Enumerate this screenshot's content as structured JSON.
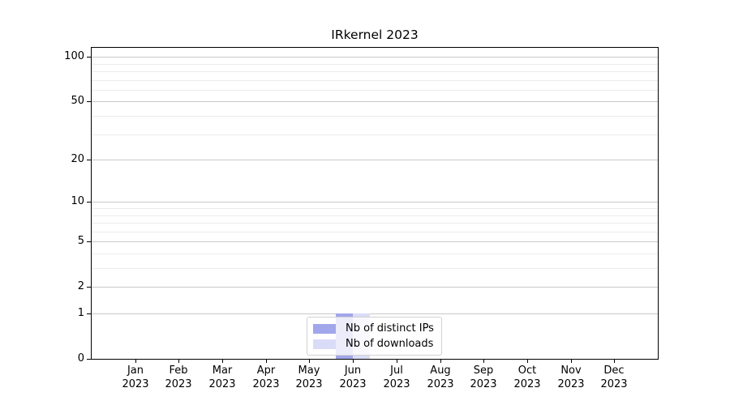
{
  "title": "IRkernel 2023",
  "colors": {
    "bar_distinct_ips": "#a2a6ea",
    "bar_downloads": "#dadcf7",
    "grid_major": "#c9c9c9",
    "grid_minor": "#ebebeb",
    "axis_spine": "#000000",
    "legend_border": "#d2d2d2"
  },
  "chart_data": {
    "type": "bar",
    "title": "IRkernel 2023",
    "categories": [
      "Jan 2023",
      "Feb 2023",
      "Mar 2023",
      "Apr 2023",
      "May 2023",
      "Jun 2023",
      "Jul 2023",
      "Aug 2023",
      "Sep 2023",
      "Oct 2023",
      "Nov 2023",
      "Dec 2023"
    ],
    "series": [
      {
        "name": "Nb of distinct IPs",
        "color": "#a2a6ea",
        "values": [
          0,
          0,
          0,
          0,
          0,
          1,
          0,
          0,
          0,
          0,
          0,
          0
        ]
      },
      {
        "name": "Nb of downloads",
        "color": "#dadcf7",
        "values": [
          0,
          0,
          0,
          0,
          0,
          1,
          0,
          0,
          0,
          0,
          0,
          0
        ]
      }
    ],
    "xlabel": "",
    "ylabel": "",
    "yscale": "log1p",
    "ylim": [
      0,
      115
    ],
    "y_major_ticks": [
      0,
      1,
      2,
      5,
      10,
      20,
      50,
      100
    ],
    "y_minor_ticks": [
      3,
      4,
      6,
      7,
      8,
      9,
      30,
      40,
      60,
      70,
      80,
      90
    ],
    "grid": "horizontal",
    "legend_position": "lower center"
  }
}
